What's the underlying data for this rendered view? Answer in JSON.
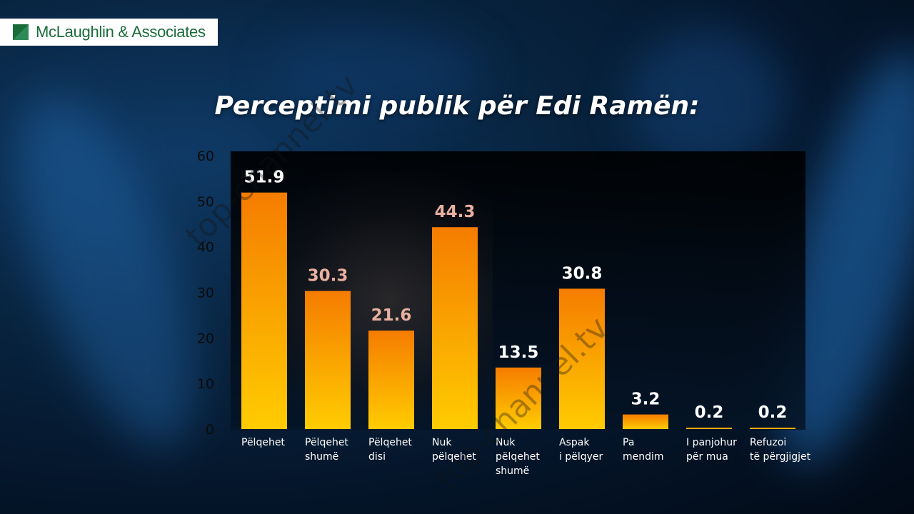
{
  "logo": {
    "text": "McLaughlin & Associates"
  },
  "watermark": {
    "text": "top-channel.tv"
  },
  "chart_data": {
    "type": "bar",
    "title": "Perceptimi publik për Edi Ramën:",
    "categories": [
      [
        "Pëlqehet"
      ],
      [
        "Pëlqehet",
        "shumë"
      ],
      [
        "Pëlqehet",
        "disi"
      ],
      [
        "Nuk",
        "pëlqehet"
      ],
      [
        "Nuk",
        "pëlqehet",
        "shumë"
      ],
      [
        "Aspak",
        "i pëlqyer"
      ],
      [
        "Pa",
        "mendim"
      ],
      [
        "I panjohur",
        "për mua"
      ],
      [
        "Refuzoi",
        "të përgjigjet"
      ]
    ],
    "values": [
      51.9,
      30.3,
      21.6,
      44.3,
      13.5,
      30.8,
      3.2,
      0.2,
      0.2
    ],
    "value_labels": [
      "51.9",
      "30.3",
      "21.6",
      "44.3",
      "13.5",
      "30.8",
      "3.2",
      "0.2",
      "0.2"
    ],
    "ylim": [
      0,
      60
    ],
    "yticks": [
      0,
      10,
      20,
      30,
      40,
      50,
      60
    ],
    "grid": false,
    "colors": {
      "bar_top": "#f57c00",
      "bar_bottom": "#ffcc00",
      "label": "#ffffff",
      "label_muted": "#e8b0a0"
    }
  }
}
